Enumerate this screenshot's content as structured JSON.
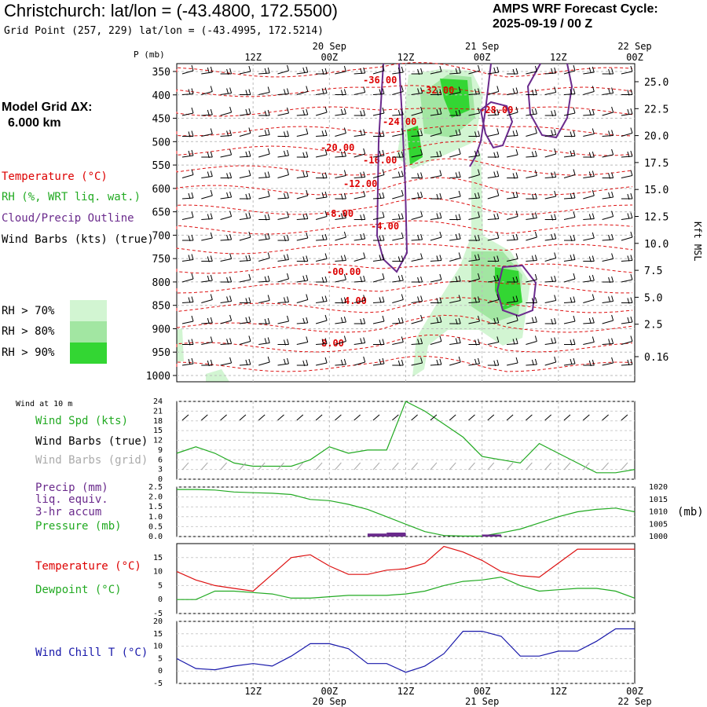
{
  "header": {
    "title": "Christchurch:  lat/lon = (-43.4800, 172.5500)",
    "grid_point": "Grid Point (257, 229) lat/lon = (-43.4995, 172.5214)",
    "cycle_line1": "AMPS WRF Forecast Cycle:",
    "cycle_line2": "2025-09-19 / 00  Z"
  },
  "model_grid": {
    "label": "Model Grid ΔX:",
    "value": "6.000 km"
  },
  "legend": {
    "temperature": "Temperature (°C)",
    "rh": "RH (%, WRT liq. wat.)",
    "cloud": "Cloud/Precip Outline",
    "wind_barbs": "Wind Barbs (kts) (true)",
    "rh70": "RH > 70%",
    "rh80": "RH > 80%",
    "rh90": "RH > 90%",
    "rh70_color": "#d2f5d2",
    "rh80_color": "#a2e6a2",
    "rh90_color": "#33d633"
  },
  "time_axis": {
    "top_dates": [
      "20 Sep",
      "21 Sep",
      "22 Sep"
    ],
    "ticks": [
      "12Z",
      "00Z",
      "12Z",
      "00Z",
      "12Z",
      "00Z"
    ],
    "bottom_dates": [
      "20 Sep",
      "21 Sep",
      "22 Sep"
    ]
  },
  "upper_panel": {
    "pressure_title": "P (mb)",
    "kft_title": "Kft MSL",
    "pressure_levels": [
      "350",
      "400",
      "450",
      "500",
      "550",
      "600",
      "650",
      "700",
      "750",
      "800",
      "850",
      "900",
      "950",
      "1000"
    ],
    "kft_labels": [
      "25.0",
      "22.5",
      "20.0",
      "17.5",
      "15.0",
      "12.5",
      "10.0",
      "7.5",
      "5.0",
      "2.5",
      "0.16"
    ],
    "temp_labels": [
      "-36.00",
      "-32.00",
      "-28.00",
      "-24.00",
      "-20.00",
      "-16.00",
      "-12.00",
      "-8.00",
      "-4.00",
      "-00.00",
      "4.00",
      "8.00"
    ]
  },
  "panel_labels": {
    "wind_at": "Wind at 10 m",
    "wind_spd": "Wind Spd (kts)",
    "wind_barbs_true": "Wind Barbs (true)",
    "wind_barbs_grid": "Wind Barbs (grid)",
    "precip_1": "Precip (mm)",
    "precip_2": "liq. equiv.",
    "precip_3": "3-hr accum",
    "pressure": "Pressure (mb)",
    "pressure_unit": "(mb)",
    "temperature": "Temperature (°C)",
    "dewpoint": "Dewpoint (°C)",
    "wind_chill": "Wind Chill T (°C)"
  },
  "chart_data": [
    {
      "type": "line",
      "title": "Wind Spd (kts)",
      "x_hours": [
        0,
        3,
        6,
        9,
        12,
        15,
        18,
        21,
        24,
        27,
        30,
        33,
        36,
        39,
        42,
        45,
        48,
        51,
        54,
        57,
        60,
        63,
        66,
        69,
        72
      ],
      "yticks": [
        "0",
        "3",
        "6",
        "9",
        "12",
        "15",
        "18",
        "21",
        "24"
      ],
      "ylim": [
        0,
        24
      ],
      "series": [
        {
          "name": "Wind Spd",
          "color": "#22aa22",
          "values": [
            8,
            10,
            8,
            5,
            4,
            4,
            4,
            6,
            10,
            8,
            9,
            9,
            24,
            21,
            17,
            13,
            7,
            6,
            5,
            11,
            8,
            5,
            2,
            2,
            3
          ]
        }
      ]
    },
    {
      "type": "line",
      "title": "Pressure (mb)",
      "x_hours": [
        0,
        3,
        6,
        9,
        12,
        15,
        18,
        21,
        24,
        27,
        30,
        33,
        36,
        39,
        42,
        45,
        48,
        51,
        54,
        57,
        60,
        63,
        66,
        69,
        72
      ],
      "yticks_left": [
        "0.0",
        "0.5",
        "1.0",
        "1.5",
        "2.0",
        "2.5"
      ],
      "yticks_right": [
        "1000",
        "1005",
        "1010",
        "1015",
        "1020"
      ],
      "ylim_right": [
        1000,
        1020
      ],
      "series": [
        {
          "name": "Pressure",
          "color": "#22aa22",
          "values": [
            1019,
            1019,
            1018.8,
            1018,
            1017.7,
            1017.5,
            1017,
            1015,
            1014.5,
            1013,
            1011,
            1008,
            1005,
            1002,
            1000.4,
            1000.2,
            1000.2,
            1001.5,
            1003,
            1005.5,
            1008,
            1010,
            1011,
            1011.5,
            1010
          ]
        }
      ],
      "precip_bars": {
        "name": "Precip 3-hr",
        "color": "#6a2a8c",
        "bars": [
          {
            "hour": 33,
            "mm": 0.15
          },
          {
            "hour": 36,
            "mm": 0.2
          },
          {
            "hour": 51,
            "mm": 0.1
          }
        ]
      }
    },
    {
      "type": "line",
      "title": "Temperature / Dewpoint (°C)",
      "x_hours": [
        0,
        3,
        6,
        9,
        12,
        15,
        18,
        21,
        24,
        27,
        30,
        33,
        36,
        39,
        42,
        45,
        48,
        51,
        54,
        57,
        60,
        63,
        66,
        69,
        72
      ],
      "yticks": [
        "-5",
        "0",
        "5",
        "10",
        "15"
      ],
      "ylim": [
        -5,
        20
      ],
      "series": [
        {
          "name": "Temperature",
          "color": "#dd1111",
          "values": [
            10,
            7,
            5,
            4,
            3,
            9,
            15,
            16,
            12,
            9,
            9,
            10.5,
            11,
            13,
            19,
            17,
            14,
            10,
            8.5,
            8,
            13,
            18,
            18,
            18,
            18
          ]
        },
        {
          "name": "Dewpoint",
          "color": "#22aa22",
          "values": [
            0,
            0,
            3,
            3,
            2.5,
            2,
            0.5,
            0.5,
            1,
            1.5,
            1.5,
            1.5,
            2,
            3,
            5,
            6.5,
            7,
            8,
            5,
            3,
            3.5,
            4,
            4,
            3,
            0.5
          ]
        }
      ]
    },
    {
      "type": "line",
      "title": "Wind Chill T (°C)",
      "x_hours": [
        0,
        3,
        6,
        9,
        12,
        15,
        18,
        21,
        24,
        27,
        30,
        33,
        36,
        39,
        42,
        45,
        48,
        51,
        54,
        57,
        60,
        63,
        66,
        69,
        72
      ],
      "yticks": [
        "-5",
        "0",
        "5",
        "10",
        "15",
        "20"
      ],
      "ylim": [
        -5,
        20
      ],
      "series": [
        {
          "name": "Wind Chill",
          "color": "#1818aa",
          "values": [
            5,
            1,
            0.5,
            2,
            3,
            2,
            6,
            11,
            11,
            9,
            3,
            3,
            -0.5,
            2,
            7,
            16,
            16,
            14,
            6,
            6,
            8,
            8,
            12,
            17,
            17
          ]
        }
      ]
    }
  ]
}
